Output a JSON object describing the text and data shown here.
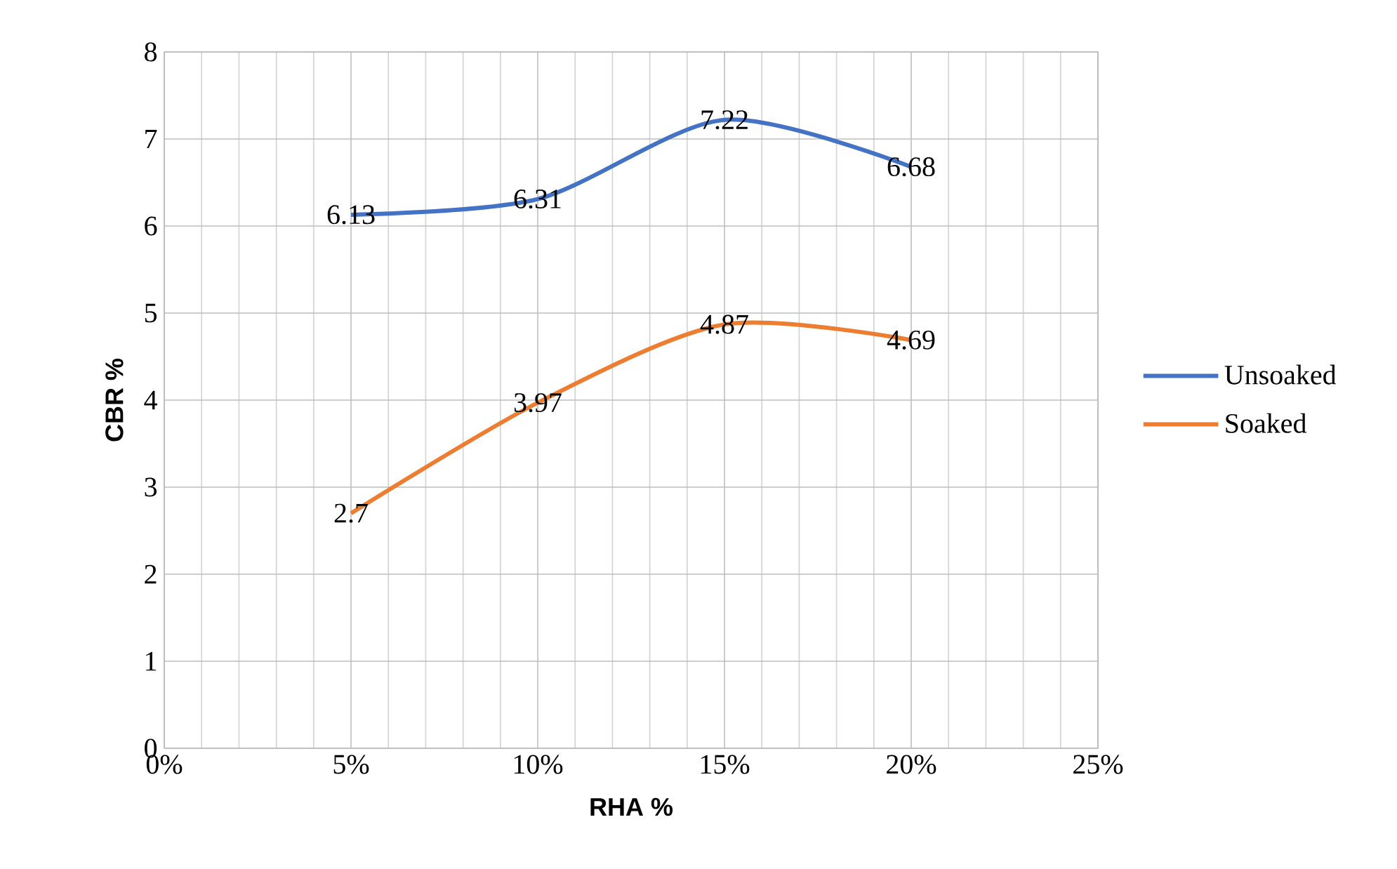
{
  "chart_data": {
    "type": "line",
    "xlabel": "RHA %",
    "ylabel": "CBR %",
    "x": [
      0.05,
      0.1,
      0.15,
      0.2
    ],
    "series": [
      {
        "name": "Unsoaked",
        "color": "#4472c4",
        "values": [
          6.13,
          6.31,
          7.22,
          6.68
        ]
      },
      {
        "name": "Soaked",
        "color": "#ed7d31",
        "values": [
          2.7,
          3.97,
          4.87,
          4.69
        ]
      }
    ],
    "xlim": [
      0,
      0.25
    ],
    "xticks": [
      {
        "value": 0,
        "label": "0%"
      },
      {
        "value": 0.05,
        "label": "5%"
      },
      {
        "value": 0.1,
        "label": "10%"
      },
      {
        "value": 0.15,
        "label": "15%"
      },
      {
        "value": 0.2,
        "label": "20%"
      },
      {
        "value": 0.25,
        "label": "25%"
      }
    ],
    "ylim": [
      0,
      8
    ],
    "yticks": [
      0,
      1,
      2,
      3,
      4,
      5,
      6,
      7,
      8
    ],
    "grid": true,
    "legend": "right",
    "data_labels": true,
    "line_style": "solid"
  }
}
